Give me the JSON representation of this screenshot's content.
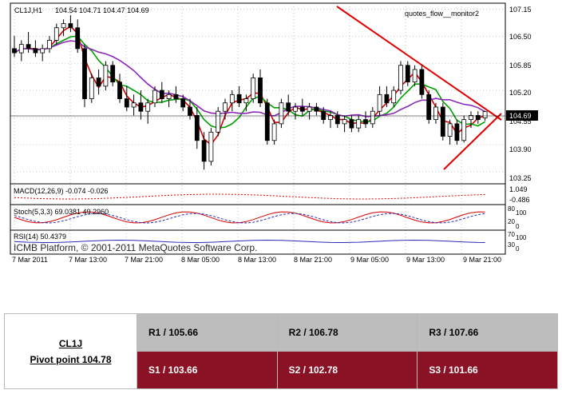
{
  "header": {
    "instrument": "CL1J,H1",
    "ohlc": "104.54 104.71 104.47 104.69",
    "indicator": "quotes_flow__monitor2"
  },
  "price_axis": {
    "ticks": [
      "107.15",
      "106.50",
      "105.85",
      "105.20",
      "104.55",
      "103.90",
      "103.25"
    ],
    "current_price": "104.69"
  },
  "time_axis": {
    "labels": [
      "7 Mar 2011",
      "7 Mar 13:00",
      "7 Mar 21:00",
      "8 Mar 05:00",
      "8 Mar 13:00",
      "8 Mar 21:00",
      "9 Mar 05:00",
      "9 Mar 13:00",
      "9 Mar 21:00"
    ]
  },
  "subwindows": {
    "macd": {
      "label": "MACD(12,26,9) -0.074 -0.026",
      "scale_top": "1.049",
      "scale_bottom": "-0.486"
    },
    "stoch": {
      "label": "Stoch(5,3,3) 69.0381 49.2960",
      "scale": [
        "80",
        "100",
        "20",
        "0"
      ]
    },
    "rsi": {
      "label": "RSI(14) 50.4379",
      "scale": [
        "70",
        "100",
        "30",
        "0"
      ]
    }
  },
  "watermark": "ICMB Platform, © 2001-2011 MetaQuotes Software Corp.",
  "colors": {
    "bull": "#ffffff",
    "bear": "#000000",
    "ma_fast": "#d40000",
    "ma_mid": "#00a000",
    "ma_slow": "#8b2ab8",
    "trendline": "#e00000",
    "pivot_row_r": "#bdbdbd",
    "pivot_row_s": "#8b1224"
  },
  "pivot": {
    "symbol": "CL1J",
    "pivot_label": "Pivot point 104.78",
    "r1": "R1 / 105.66",
    "r2": "R2  / 106.78",
    "r3": "R3 / 107.66",
    "s1": "S1 / 103.66",
    "s2": "S2 / 102.78",
    "s3": "S3 / 101.66"
  },
  "chart_data": {
    "type": "candlestick",
    "title": "CL1J,H1",
    "ylim": [
      103.0,
      107.25
    ],
    "candles": [
      {
        "o": 106.2,
        "h": 106.5,
        "l": 106.0,
        "c": 106.1
      },
      {
        "o": 106.1,
        "h": 106.4,
        "l": 105.9,
        "c": 106.3
      },
      {
        "o": 106.3,
        "h": 106.6,
        "l": 106.1,
        "c": 106.2
      },
      {
        "o": 106.2,
        "h": 106.4,
        "l": 106.0,
        "c": 106.1
      },
      {
        "o": 106.1,
        "h": 106.3,
        "l": 105.9,
        "c": 106.2
      },
      {
        "o": 106.2,
        "h": 106.5,
        "l": 106.1,
        "c": 106.4
      },
      {
        "o": 106.4,
        "h": 106.8,
        "l": 106.3,
        "c": 106.7
      },
      {
        "o": 106.7,
        "h": 106.9,
        "l": 106.5,
        "c": 106.8
      },
      {
        "o": 106.8,
        "h": 107.0,
        "l": 106.6,
        "c": 106.7
      },
      {
        "o": 106.7,
        "h": 106.9,
        "l": 106.1,
        "c": 106.2
      },
      {
        "o": 106.2,
        "h": 106.3,
        "l": 104.8,
        "c": 105.0
      },
      {
        "o": 105.0,
        "h": 105.6,
        "l": 104.9,
        "c": 105.5
      },
      {
        "o": 105.5,
        "h": 105.7,
        "l": 105.1,
        "c": 105.3
      },
      {
        "o": 105.3,
        "h": 105.9,
        "l": 105.2,
        "c": 105.8
      },
      {
        "o": 105.8,
        "h": 105.9,
        "l": 105.3,
        "c": 105.4
      },
      {
        "o": 105.4,
        "h": 105.6,
        "l": 104.9,
        "c": 105.0
      },
      {
        "o": 105.0,
        "h": 105.3,
        "l": 104.7,
        "c": 104.8
      },
      {
        "o": 104.8,
        "h": 105.1,
        "l": 104.6,
        "c": 104.9
      },
      {
        "o": 104.9,
        "h": 105.2,
        "l": 104.5,
        "c": 104.7
      },
      {
        "o": 104.7,
        "h": 105.0,
        "l": 104.4,
        "c": 104.9
      },
      {
        "o": 104.9,
        "h": 105.3,
        "l": 104.8,
        "c": 105.2
      },
      {
        "o": 105.2,
        "h": 105.4,
        "l": 104.9,
        "c": 105.0
      },
      {
        "o": 105.0,
        "h": 105.2,
        "l": 104.8,
        "c": 105.1
      },
      {
        "o": 105.1,
        "h": 105.3,
        "l": 104.9,
        "c": 105.0
      },
      {
        "o": 105.0,
        "h": 105.1,
        "l": 104.7,
        "c": 104.8
      },
      {
        "o": 104.8,
        "h": 105.0,
        "l": 104.5,
        "c": 104.6
      },
      {
        "o": 104.6,
        "h": 104.8,
        "l": 103.8,
        "c": 104.0
      },
      {
        "o": 104.0,
        "h": 104.2,
        "l": 103.3,
        "c": 103.5
      },
      {
        "o": 103.5,
        "h": 104.3,
        "l": 103.4,
        "c": 104.2
      },
      {
        "o": 104.2,
        "h": 104.8,
        "l": 104.1,
        "c": 104.7
      },
      {
        "o": 104.7,
        "h": 105.0,
        "l": 104.5,
        "c": 104.9
      },
      {
        "o": 104.9,
        "h": 105.2,
        "l": 104.7,
        "c": 105.1
      },
      {
        "o": 105.1,
        "h": 105.3,
        "l": 104.8,
        "c": 104.9
      },
      {
        "o": 104.9,
        "h": 105.1,
        "l": 104.7,
        "c": 105.0
      },
      {
        "o": 105.0,
        "h": 105.6,
        "l": 104.9,
        "c": 105.5
      },
      {
        "o": 105.5,
        "h": 105.7,
        "l": 104.8,
        "c": 104.9
      },
      {
        "o": 104.9,
        "h": 105.0,
        "l": 103.9,
        "c": 104.0
      },
      {
        "o": 104.0,
        "h": 104.5,
        "l": 103.9,
        "c": 104.4
      },
      {
        "o": 104.4,
        "h": 105.0,
        "l": 104.3,
        "c": 104.9
      },
      {
        "o": 104.9,
        "h": 105.1,
        "l": 104.6,
        "c": 104.7
      },
      {
        "o": 104.7,
        "h": 104.9,
        "l": 104.5,
        "c": 104.8
      },
      {
        "o": 104.8,
        "h": 105.0,
        "l": 104.6,
        "c": 104.7
      },
      {
        "o": 104.7,
        "h": 104.9,
        "l": 104.5,
        "c": 104.8
      },
      {
        "o": 104.8,
        "h": 104.9,
        "l": 104.6,
        "c": 104.7
      },
      {
        "o": 104.7,
        "h": 104.8,
        "l": 104.4,
        "c": 104.5
      },
      {
        "o": 104.5,
        "h": 104.7,
        "l": 104.3,
        "c": 104.6
      },
      {
        "o": 104.6,
        "h": 104.7,
        "l": 104.3,
        "c": 104.4
      },
      {
        "o": 104.4,
        "h": 104.6,
        "l": 104.2,
        "c": 104.5
      },
      {
        "o": 104.5,
        "h": 104.6,
        "l": 104.2,
        "c": 104.3
      },
      {
        "o": 104.3,
        "h": 104.6,
        "l": 104.2,
        "c": 104.5
      },
      {
        "o": 104.5,
        "h": 104.7,
        "l": 104.3,
        "c": 104.4
      },
      {
        "o": 104.4,
        "h": 104.8,
        "l": 104.3,
        "c": 104.7
      },
      {
        "o": 104.7,
        "h": 105.3,
        "l": 104.6,
        "c": 105.1
      },
      {
        "o": 105.1,
        "h": 105.3,
        "l": 104.8,
        "c": 104.9
      },
      {
        "o": 104.9,
        "h": 105.3,
        "l": 104.8,
        "c": 105.2
      },
      {
        "o": 105.2,
        "h": 105.9,
        "l": 105.1,
        "c": 105.8
      },
      {
        "o": 105.8,
        "h": 105.9,
        "l": 105.3,
        "c": 105.4
      },
      {
        "o": 105.4,
        "h": 105.8,
        "l": 105.3,
        "c": 105.7
      },
      {
        "o": 105.7,
        "h": 105.8,
        "l": 105.0,
        "c": 105.1
      },
      {
        "o": 105.1,
        "h": 105.2,
        "l": 104.4,
        "c": 104.5
      },
      {
        "o": 104.5,
        "h": 104.9,
        "l": 104.4,
        "c": 104.8
      },
      {
        "o": 104.8,
        "h": 104.9,
        "l": 104.0,
        "c": 104.1
      },
      {
        "o": 104.1,
        "h": 104.5,
        "l": 103.9,
        "c": 104.4
      },
      {
        "o": 104.4,
        "h": 104.5,
        "l": 103.9,
        "c": 104.0
      },
      {
        "o": 104.0,
        "h": 104.6,
        "l": 103.95,
        "c": 104.5
      },
      {
        "o": 104.5,
        "h": 104.7,
        "l": 104.3,
        "c": 104.6
      },
      {
        "o": 104.6,
        "h": 104.7,
        "l": 104.4,
        "c": 104.5
      },
      {
        "o": 104.54,
        "h": 104.71,
        "l": 104.47,
        "c": 104.69
      }
    ]
  }
}
